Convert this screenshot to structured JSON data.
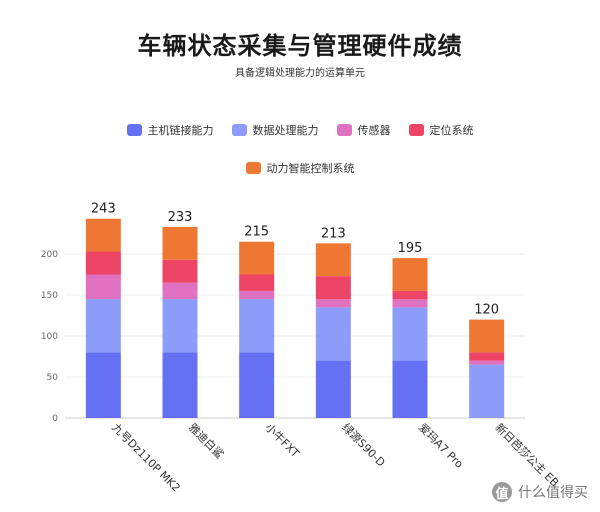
{
  "header": {
    "title": "车辆状态采集与管理硬件成绩",
    "subtitle": "具备逻辑处理能力的运算单元"
  },
  "watermark": {
    "text": "值 什么值得买",
    "logo_char": "值",
    "label": "什么值得买"
  },
  "chart_data": {
    "type": "bar",
    "stacked": true,
    "title": "车辆状态采集与管理硬件成绩",
    "subtitle": "具备逻辑处理能力的运算单元",
    "categories": [
      "九号Dz110P MK2",
      "雅迪白鲨",
      "小牛FXT",
      "绿源S90-D",
      "爱玛A7 Pro",
      "新日芭莎公主 EB"
    ],
    "series": [
      {
        "name": "主机链接能力",
        "color": "#6670f2",
        "values": [
          80,
          80,
          80,
          70,
          70,
          0
        ]
      },
      {
        "name": "数据处理能力",
        "color": "#8c9cf8",
        "values": [
          65,
          65,
          65,
          65,
          65,
          65
        ]
      },
      {
        "name": "传感器",
        "color": "#e070c0",
        "values": [
          30,
          20,
          10,
          10,
          10,
          5
        ]
      },
      {
        "name": "定位系统",
        "color": "#ee4466",
        "values": [
          28,
          28,
          20,
          28,
          10,
          10
        ]
      },
      {
        "name": "动力智能控制系统",
        "color": "#ee7733",
        "values": [
          40,
          40,
          40,
          40,
          40,
          40
        ]
      }
    ],
    "totals": [
      243,
      233,
      215,
      213,
      195,
      120
    ],
    "yticks": [
      0,
      50,
      100,
      150,
      200
    ],
    "ylim": [
      0,
      250
    ],
    "grid": true,
    "legend_position": "top-center"
  }
}
